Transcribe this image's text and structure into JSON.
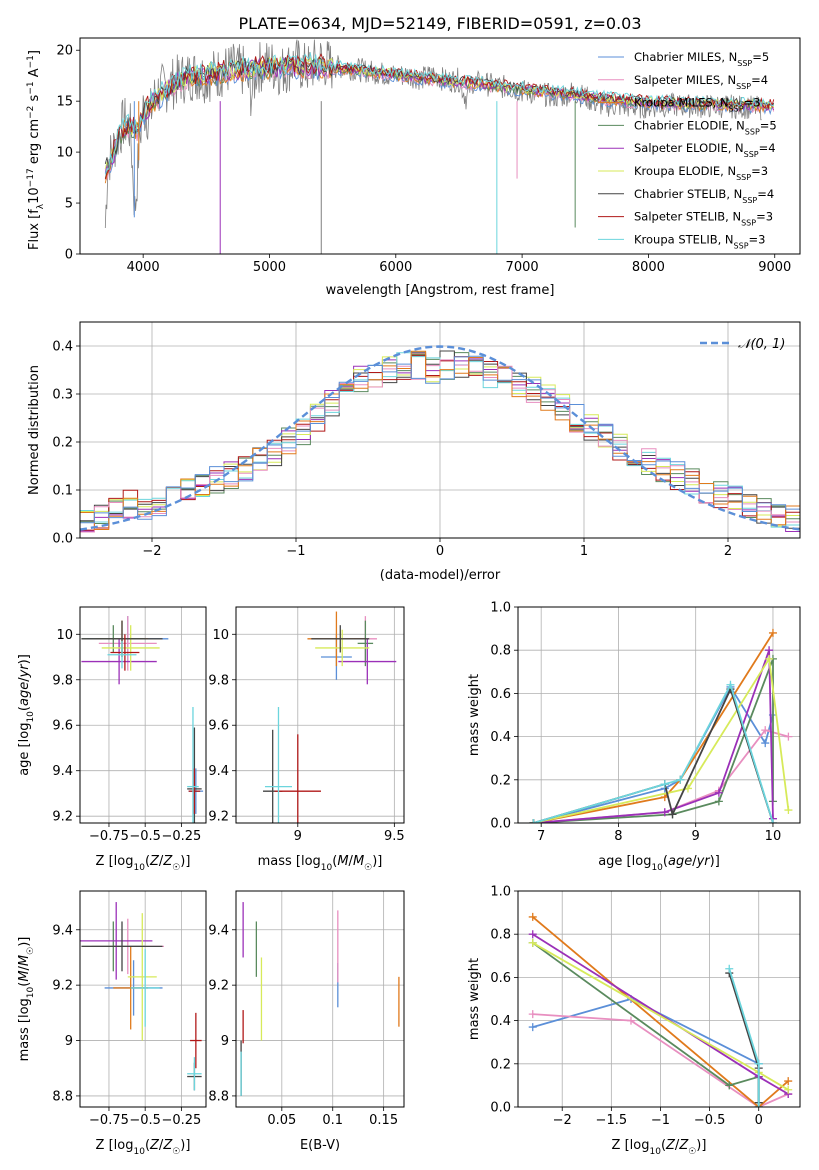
{
  "figure": {
    "title": "PLATE=0634, MJD=52149, FIBERID=0591, z=0.03"
  },
  "chart_data": [
    {
      "id": "spectrum",
      "type": "line",
      "title": "PLATE=0634, MJD=52149, FIBERID=0591, z=0.03",
      "xlabel": "wavelength [Angstrom, rest frame]",
      "ylabel": "Flux [f_λ 10^-17 erg cm^-2 s^-1 A^-1]",
      "xlim": [
        3500,
        9200
      ],
      "ylim": [
        0,
        21.2
      ],
      "xticks": [
        4000,
        5000,
        6000,
        7000,
        8000,
        9000
      ],
      "yticks": [
        0,
        5,
        10,
        15,
        20
      ],
      "legend_position": "top-right",
      "data_series": {
        "name": "",
        "color": "#808080",
        "x": [
          3700,
          3720,
          3760,
          3800,
          3850,
          3900,
          3935,
          3970,
          4000,
          4050,
          4100,
          4200,
          4300,
          4400,
          4500,
          4600,
          4700,
          4800,
          4860,
          4900,
          5000,
          5100,
          5200,
          5300,
          5400,
          5500,
          5600,
          5700,
          5800,
          5900,
          6000,
          6100,
          6200,
          6300,
          6400,
          6500,
          6560,
          6600,
          6700,
          6800,
          6900,
          7000,
          7100,
          7200,
          7300,
          7400,
          7500,
          7600,
          7700,
          7800,
          7900,
          8000,
          8200,
          8400,
          8600,
          8800,
          8900
        ],
        "y": [
          2.6,
          9.0,
          10.2,
          11.5,
          13.0,
          12.2,
          4.0,
          11.0,
          14.2,
          13.4,
          15.8,
          16.5,
          17.2,
          17.6,
          17.4,
          17.8,
          18.2,
          17.9,
          15.6,
          18.3,
          18.6,
          18.0,
          18.8,
          18.1,
          19.0,
          18.4,
          18.3,
          18.1,
          17.9,
          17.7,
          17.5,
          17.6,
          17.2,
          17.6,
          17.0,
          17.1,
          15.2,
          16.9,
          16.7,
          16.5,
          16.3,
          16.0,
          15.8,
          15.6,
          15.4,
          15.9,
          15.4,
          14.7,
          14.6,
          14.5,
          14.4,
          14.5,
          14.6,
          14.5,
          14.5,
          14.4,
          14.3
        ]
      },
      "model_curve": {
        "x": [
          3700,
          3760,
          3800,
          3850,
          3900,
          3950,
          4000,
          4100,
          4200,
          4300,
          4400,
          4500,
          4600,
          4700,
          4800,
          5000,
          5200,
          5400,
          5600,
          5800,
          6000,
          6200,
          6400,
          6600,
          6800,
          7000,
          7200,
          7400,
          7600,
          7800,
          8000,
          8200,
          8400,
          8600,
          8800,
          9000
        ],
        "y": [
          8.0,
          9.6,
          11.2,
          12.3,
          12.6,
          12.0,
          13.8,
          15.2,
          16.2,
          17.0,
          17.4,
          17.6,
          17.8,
          18.0,
          18.1,
          18.3,
          18.4,
          18.4,
          18.2,
          17.9,
          17.6,
          17.3,
          17.0,
          16.8,
          16.5,
          16.2,
          15.9,
          15.7,
          15.3,
          15.1,
          14.9,
          14.8,
          14.7,
          14.7,
          14.6,
          14.5
        ]
      },
      "absorption_spikes": [
        {
          "x": 3930,
          "y_low": 3.6
        },
        {
          "x": 3965,
          "y_low": 9.2
        },
        {
          "x": 4610,
          "y_low": 0.0
        },
        {
          "x": 5410,
          "y_low": 0.0
        },
        {
          "x": 6800,
          "y_low": 0.0
        },
        {
          "x": 6960,
          "y_low": 7.4
        },
        {
          "x": 7420,
          "y_low": 2.6
        }
      ],
      "series": [
        {
          "name": "Chabrier MILES, N_SSP=5",
          "color": "#5b8fd8"
        },
        {
          "name": "Salpeter MILES, N_SSP=4",
          "color": "#e88fc0"
        },
        {
          "name": "Kroupa MILES, N_SSP=3",
          "color": "#e07a1c"
        },
        {
          "name": "Chabrier ELODIE, N_SSP=5",
          "color": "#5a8a5e"
        },
        {
          "name": "Salpeter ELODIE, N_SSP=4",
          "color": "#9b30b8"
        },
        {
          "name": "Kroupa ELODIE, N_SSP=3",
          "color": "#d7ea5a"
        },
        {
          "name": "Chabrier STELIB, N_SSP=4",
          "color": "#444444"
        },
        {
          "name": "Salpeter STELIB, N_SSP=3",
          "color": "#b01818"
        },
        {
          "name": "Kroupa STELIB, N_SSP=3",
          "color": "#6cd5dd"
        }
      ]
    },
    {
      "id": "residuals",
      "type": "line",
      "xlabel": "(data-model)/error",
      "ylabel": "Normed distribution",
      "xlim": [
        -2.5,
        2.5
      ],
      "ylim": [
        0,
        0.45
      ],
      "xticks": [
        -2,
        -1,
        0,
        1,
        2
      ],
      "yticks": [
        0.0,
        0.1,
        0.2,
        0.3,
        0.4
      ],
      "grid": true,
      "legend_position": "top-right",
      "legend_label": "𝒩(0, 1)",
      "bin_width": 0.1,
      "histogram_bins": [
        -2.45,
        -2.35,
        -2.25,
        -2.15,
        -2.05,
        -1.95,
        -1.85,
        -1.75,
        -1.65,
        -1.55,
        -1.45,
        -1.35,
        -1.25,
        -1.15,
        -1.05,
        -0.95,
        -0.85,
        -0.75,
        -0.65,
        -0.55,
        -0.45,
        -0.35,
        -0.25,
        -0.15,
        -0.05,
        0.05,
        0.15,
        0.25,
        0.35,
        0.45,
        0.55,
        0.65,
        0.75,
        0.85,
        0.95,
        1.05,
        1.15,
        1.25,
        1.35,
        1.45,
        1.55,
        1.65,
        1.75,
        1.85,
        1.95,
        2.05,
        2.15,
        2.25,
        2.35,
        2.45
      ],
      "histogram_centre": [
        0.035,
        0.045,
        0.06,
        0.07,
        0.06,
        0.075,
        0.09,
        0.1,
        0.11,
        0.12,
        0.13,
        0.14,
        0.16,
        0.18,
        0.2,
        0.22,
        0.25,
        0.28,
        0.31,
        0.33,
        0.34,
        0.35,
        0.36,
        0.36,
        0.35,
        0.36,
        0.36,
        0.35,
        0.34,
        0.33,
        0.32,
        0.31,
        0.29,
        0.27,
        0.25,
        0.23,
        0.21,
        0.19,
        0.17,
        0.16,
        0.14,
        0.13,
        0.12,
        0.1,
        0.09,
        0.08,
        0.07,
        0.06,
        0.05,
        0.04
      ]
    },
    {
      "id": "age-vs-Z",
      "type": "scatter",
      "xlabel": "Z [log10(Z/Z☉)]",
      "ylabel": "age [log10(age/yr)]",
      "xlim": [
        -0.95,
        -0.08
      ],
      "ylim": [
        9.17,
        10.12
      ],
      "xticks": [
        -0.75,
        -0.5,
        -0.25
      ],
      "yticks": [
        9.2,
        9.4,
        9.6,
        9.8,
        10.0
      ],
      "points": [
        {
          "x": -0.62,
          "y": 9.98,
          "xerr": 0.28,
          "yerr": 0.1,
          "c": 0
        },
        {
          "x": -0.62,
          "y": 9.96,
          "xerr": 0.2,
          "yerr": 0.12,
          "c": 1
        },
        {
          "x": -0.66,
          "y": 9.98,
          "xerr": 0.18,
          "yerr": 0.08,
          "c": 2
        },
        {
          "x": -0.72,
          "y": 9.98,
          "xerr": 0.22,
          "yerr": 0.06,
          "c": 3
        },
        {
          "x": -0.68,
          "y": 9.88,
          "xerr": 0.26,
          "yerr": 0.1,
          "c": 4
        },
        {
          "x": -0.6,
          "y": 9.94,
          "xerr": 0.2,
          "yerr": 0.1,
          "c": 5
        },
        {
          "x": -0.66,
          "y": 9.98,
          "xerr": 0.28,
          "yerr": 0.08,
          "c": 6
        },
        {
          "x": -0.64,
          "y": 9.92,
          "xerr": 0.1,
          "yerr": 0.08,
          "c": 7
        },
        {
          "x": -0.66,
          "y": 9.91,
          "xerr": 0.1,
          "yerr": 0.06,
          "c": 8
        },
        {
          "x": -0.15,
          "y": 9.31,
          "xerr": 0.05,
          "yerr": 0.1,
          "c": 0
        },
        {
          "x": -0.16,
          "y": 9.32,
          "xerr": 0.05,
          "yerr": 0.27,
          "c": 6
        },
        {
          "x": -0.16,
          "y": 9.31,
          "xerr": 0.04,
          "yerr": 0.1,
          "c": 7
        },
        {
          "x": -0.17,
          "y": 9.33,
          "xerr": 0.04,
          "yerr": 0.35,
          "c": 8
        }
      ]
    },
    {
      "id": "age-vs-mass",
      "type": "scatter",
      "xlabel": "mass [log10(M/M☉)]",
      "ylabel": "",
      "xlim": [
        8.68,
        9.55
      ],
      "ylim": [
        9.17,
        10.12
      ],
      "xticks": [
        9.0,
        9.5
      ],
      "yticks": [
        9.2,
        9.4,
        9.6,
        9.8,
        10.0
      ],
      "points": [
        {
          "x": 9.2,
          "y": 9.9,
          "xerr": 0.08,
          "yerr": 0.1,
          "c": 0
        },
        {
          "x": 9.35,
          "y": 9.98,
          "xerr": 0.06,
          "yerr": 0.1,
          "c": 1
        },
        {
          "x": 9.2,
          "y": 9.98,
          "xerr": 0.15,
          "yerr": 0.12,
          "c": 2
        },
        {
          "x": 9.35,
          "y": 9.96,
          "xerr": 0.04,
          "yerr": 0.1,
          "c": 3
        },
        {
          "x": 9.36,
          "y": 9.88,
          "xerr": 0.15,
          "yerr": 0.1,
          "c": 4
        },
        {
          "x": 9.23,
          "y": 9.94,
          "xerr": 0.14,
          "yerr": 0.08,
          "c": 5
        },
        {
          "x": 9.22,
          "y": 9.98,
          "xerr": 0.15,
          "yerr": 0.06,
          "c": 6
        },
        {
          "x": 8.87,
          "y": 9.31,
          "xerr": 0.05,
          "yerr": 0.27,
          "c": 6
        },
        {
          "x": 9.0,
          "y": 9.31,
          "xerr": 0.12,
          "yerr": 0.25,
          "c": 7
        },
        {
          "x": 8.9,
          "y": 9.33,
          "xerr": 0.07,
          "yerr": 0.35,
          "c": 8
        }
      ]
    },
    {
      "id": "massweight-vs-age",
      "type": "line",
      "xlabel": "age [log10(age/yr)]",
      "ylabel": "mass weight",
      "xlim": [
        6.7,
        10.35
      ],
      "ylim": [
        0,
        1.0
      ],
      "xticks": [
        7,
        8,
        9,
        10
      ],
      "yticks": [
        0.0,
        0.2,
        0.4,
        0.6,
        0.8,
        1.0
      ],
      "grid": true,
      "series": [
        {
          "c": 0,
          "x": [
            6.9,
            8.6,
            8.8,
            9.45,
            9.9,
            10.0
          ],
          "y": [
            0.0,
            0.16,
            0.2,
            0.63,
            0.37,
            0.5
          ]
        },
        {
          "c": 1,
          "x": [
            6.9,
            8.6,
            9.3,
            9.9,
            10.2
          ],
          "y": [
            0.0,
            0.05,
            0.15,
            0.43,
            0.4
          ]
        },
        {
          "c": 2,
          "x": [
            6.9,
            8.6,
            8.8,
            10.0
          ],
          "y": [
            0.0,
            0.12,
            0.2,
            0.88
          ]
        },
        {
          "c": 3,
          "x": [
            6.9,
            8.7,
            9.3,
            10.0,
            10.0
          ],
          "y": [
            0.0,
            0.04,
            0.1,
            0.76,
            0.1
          ]
        },
        {
          "c": 4,
          "x": [
            6.9,
            8.6,
            9.3,
            9.95,
            10.0
          ],
          "y": [
            0.0,
            0.05,
            0.14,
            0.8,
            0.02
          ]
        },
        {
          "c": 5,
          "x": [
            6.9,
            8.9,
            9.95,
            10.2
          ],
          "y": [
            0.0,
            0.16,
            0.76,
            0.06
          ]
        },
        {
          "c": 6,
          "x": [
            6.9,
            8.6,
            8.7,
            9.45,
            10.0
          ],
          "y": [
            0.0,
            0.18,
            0.04,
            0.62,
            0.0
          ]
        },
        {
          "c": 8,
          "x": [
            6.9,
            8.6,
            8.8,
            9.45,
            10.0
          ],
          "y": [
            0.0,
            0.18,
            0.2,
            0.64,
            0.0
          ]
        }
      ]
    },
    {
      "id": "mass-vs-Z",
      "type": "scatter",
      "xlabel": "Z [log10(Z/Z☉)]",
      "ylabel": "mass [log10(M/M☉)]",
      "xlim": [
        -0.95,
        -0.08
      ],
      "ylim": [
        8.76,
        9.54
      ],
      "xticks": [
        -0.75,
        -0.5,
        -0.25
      ],
      "yticks": [
        8.8,
        9.0,
        9.2,
        9.4
      ],
      "points": [
        {
          "x": -0.58,
          "y": 9.19,
          "xerr": 0.2,
          "yerr": 0.1,
          "c": 0
        },
        {
          "x": -0.62,
          "y": 9.34,
          "xerr": 0.25,
          "yerr": 0.1,
          "c": 1
        },
        {
          "x": -0.6,
          "y": 9.19,
          "xerr": 0.12,
          "yerr": 0.15,
          "c": 2
        },
        {
          "x": -0.72,
          "y": 9.34,
          "xerr": 0.22,
          "yerr": 0.09,
          "c": 3
        },
        {
          "x": -0.7,
          "y": 9.36,
          "xerr": 0.25,
          "yerr": 0.14,
          "c": 4
        },
        {
          "x": -0.52,
          "y": 9.23,
          "xerr": 0.1,
          "yerr": 0.23,
          "c": 5
        },
        {
          "x": -0.66,
          "y": 9.34,
          "xerr": 0.28,
          "yerr": 0.09,
          "c": 6
        },
        {
          "x": -0.5,
          "y": 9.19,
          "xerr": 0.1,
          "yerr": 0.14,
          "c": 8
        },
        {
          "x": -0.16,
          "y": 8.87,
          "xerr": 0.05,
          "yerr": 0.05,
          "c": 6
        },
        {
          "x": -0.15,
          "y": 9.0,
          "xerr": 0.04,
          "yerr": 0.1,
          "c": 7
        },
        {
          "x": -0.16,
          "y": 8.88,
          "xerr": 0.05,
          "yerr": 0.06,
          "c": 8
        }
      ]
    },
    {
      "id": "mass-vs-EBV",
      "type": "scatter",
      "xlabel": "E(B-V)",
      "ylabel": "",
      "xlim": [
        0.005,
        0.17
      ],
      "ylim": [
        8.76,
        9.54
      ],
      "xticks": [
        0.05,
        0.1,
        0.15
      ],
      "yticks": [
        8.8,
        9.0,
        9.2,
        9.4
      ],
      "points": [
        {
          "x": 0.105,
          "y": 9.2,
          "xerr": 0.0,
          "yerr": 0.08,
          "c": 0
        },
        {
          "x": 0.105,
          "y": 9.34,
          "xerr": 0.0,
          "yerr": 0.13,
          "c": 1
        },
        {
          "x": 0.165,
          "y": 9.14,
          "xerr": 0.0,
          "yerr": 0.09,
          "c": 2
        },
        {
          "x": 0.025,
          "y": 9.33,
          "xerr": 0.0,
          "yerr": 0.1,
          "c": 3
        },
        {
          "x": 0.012,
          "y": 9.4,
          "xerr": 0.0,
          "yerr": 0.1,
          "c": 4
        },
        {
          "x": 0.03,
          "y": 9.15,
          "xerr": 0.0,
          "yerr": 0.15,
          "c": 5
        },
        {
          "x": 0.01,
          "y": 8.9,
          "xerr": 0.0,
          "yerr": 0.1,
          "c": 6
        },
        {
          "x": 0.012,
          "y": 9.05,
          "xerr": 0.0,
          "yerr": 0.06,
          "c": 7
        },
        {
          "x": 0.01,
          "y": 8.88,
          "xerr": 0.0,
          "yerr": 0.08,
          "c": 8
        }
      ]
    },
    {
      "id": "massweight-vs-Z",
      "type": "line",
      "xlabel": "Z [log10(Z/Z☉)]",
      "ylabel": "mass weight",
      "xlim": [
        -2.45,
        0.42
      ],
      "ylim": [
        0,
        1.0
      ],
      "xticks": [
        -2.0,
        -1.5,
        -1.0,
        -0.5,
        0.0
      ],
      "yticks": [
        0.0,
        0.2,
        0.4,
        0.6,
        0.8,
        1.0
      ],
      "grid": true,
      "series": [
        {
          "c": 0,
          "x": [
            -2.3,
            -1.3,
            0.0,
            0.0
          ],
          "y": [
            0.37,
            0.5,
            0.2,
            0.0
          ]
        },
        {
          "c": 1,
          "x": [
            -2.3,
            -1.3,
            0.0,
            0.3
          ],
          "y": [
            0.43,
            0.4,
            0.0,
            0.06
          ]
        },
        {
          "c": 2,
          "x": [
            -2.3,
            0.0,
            0.3
          ],
          "y": [
            0.88,
            0.0,
            0.12
          ]
        },
        {
          "c": 3,
          "x": [
            -2.3,
            -0.3,
            0.0,
            0.0
          ],
          "y": [
            0.76,
            0.1,
            0.14,
            0.0
          ]
        },
        {
          "c": 4,
          "x": [
            -2.3,
            0.0,
            0.3
          ],
          "y": [
            0.8,
            0.14,
            0.06
          ]
        },
        {
          "c": 5,
          "x": [
            -2.3,
            0.0,
            0.3
          ],
          "y": [
            0.76,
            0.16,
            0.08
          ]
        },
        {
          "c": 6,
          "x": [
            -0.3,
            0.0,
            0.0
          ],
          "y": [
            0.62,
            0.18,
            0.02
          ]
        },
        {
          "c": 8,
          "x": [
            -0.3,
            0.0,
            0.0
          ],
          "y": [
            0.64,
            0.2,
            0.0
          ]
        }
      ]
    }
  ]
}
